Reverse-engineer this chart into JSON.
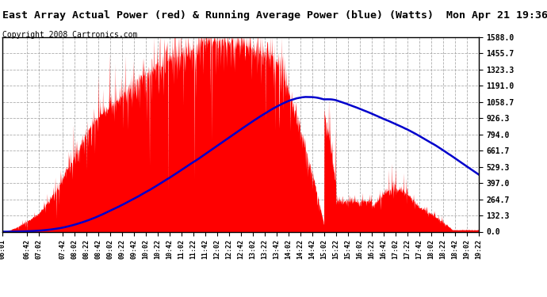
{
  "title": "East Array Actual Power (red) & Running Average Power (blue) (Watts)  Mon Apr 21 19:36",
  "copyright": "Copyright 2008 Cartronics.com",
  "yticks": [
    0.0,
    132.3,
    264.7,
    397.0,
    529.3,
    661.7,
    794.0,
    926.3,
    1058.7,
    1191.0,
    1323.3,
    1455.7,
    1588.0
  ],
  "ymax": 1588.0,
  "ymin": 0.0,
  "xtick_labels": [
    "06:01",
    "06:42",
    "07:02",
    "07:42",
    "08:02",
    "08:22",
    "08:42",
    "09:02",
    "09:22",
    "09:42",
    "10:02",
    "10:22",
    "10:42",
    "11:02",
    "11:22",
    "11:42",
    "12:02",
    "12:22",
    "12:42",
    "13:02",
    "13:22",
    "13:42",
    "14:02",
    "14:22",
    "14:42",
    "15:02",
    "15:22",
    "15:42",
    "16:02",
    "16:22",
    "16:42",
    "17:02",
    "17:22",
    "17:42",
    "18:02",
    "18:22",
    "18:42",
    "19:02",
    "19:22"
  ],
  "background_color": "#ffffff",
  "plot_bg_color": "#ffffff",
  "grid_color": "#999999",
  "actual_color": "#ff0000",
  "average_color": "#0000cc",
  "title_color": "#000000",
  "title_fontsize": 9.5,
  "copyright_fontsize": 7
}
